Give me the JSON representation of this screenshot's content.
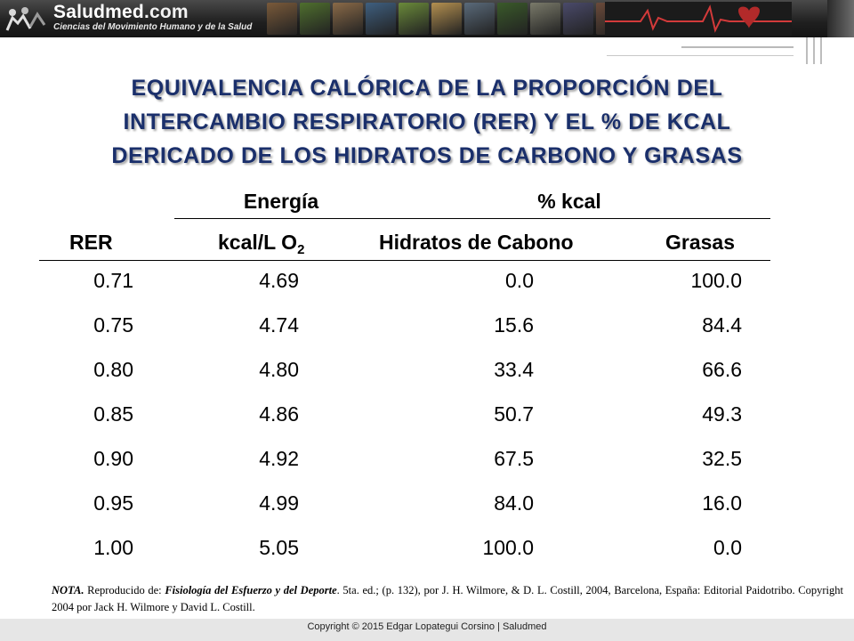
{
  "banner": {
    "brand": "Saludmed",
    "brand_suffix": ".com",
    "tagline": "Ciencias del Movimiento Humano y de la Salud",
    "photos": [
      "#7a5a3a",
      "#4f6f2e",
      "#8a6a48",
      "#3f5f7f",
      "#6a8a3a",
      "#b49050",
      "#5a6a7a",
      "#3a5a2a",
      "#7a7a6a",
      "#4a4a6a",
      "#6a4a3a",
      "#8a7a5a"
    ]
  },
  "title_lines": [
    "EQUIVALENCIA CALÓRICA DE LA PROPORCIÓN DEL",
    "INTERCAMBIO RESPIRATORIO (RER) Y EL % DE KCAL",
    "DERICADO DE LOS HIDRATOS DE CARBONO Y GRASAS"
  ],
  "table": {
    "group_headers": {
      "energy": "Energía",
      "kcal_pct": "% kcal"
    },
    "columns": {
      "rer": "RER",
      "kcal_per_l": "kcal/L O",
      "kcal_per_l_sub": "2",
      "carbs": "Hidratos de Cabono",
      "fats": "Grasas"
    },
    "rows": [
      {
        "rer": "0.71",
        "kcal": "4.69",
        "carbs": "0.0",
        "fats": "100.0"
      },
      {
        "rer": "0.75",
        "kcal": "4.74",
        "carbs": "15.6",
        "fats": "84.4"
      },
      {
        "rer": "0.80",
        "kcal": "4.80",
        "carbs": "33.4",
        "fats": "66.6"
      },
      {
        "rer": "0.85",
        "kcal": "4.86",
        "carbs": "50.7",
        "fats": "49.3"
      },
      {
        "rer": "0.90",
        "kcal": "4.92",
        "carbs": "67.5",
        "fats": "32.5"
      },
      {
        "rer": "0.95",
        "kcal": "4.99",
        "carbs": "84.0",
        "fats": "16.0"
      },
      {
        "rer": "1.00",
        "kcal": "5.05",
        "carbs": "100.0",
        "fats": "0.0"
      }
    ]
  },
  "note": {
    "label": "NOTA.",
    "pre": " Reproducido de: ",
    "book_title": "Fisiología del Esfuerzo y del Deporte",
    "post": ". 5ta. ed.; (p. 132), por J. H. Wilmore, & D. L. Costill, 2004, Barcelona, España: Editorial Paidotribo. Copyright 2004 por Jack H. Wilmore y David L. Costill."
  },
  "footer": "Copyright © 2015 Edgar Lopategui Corsino | Saludmed",
  "colors": {
    "title": "#1a2f6b",
    "banner_bg": "#1f1f1f",
    "footer_bg": "#e6e6e6"
  }
}
